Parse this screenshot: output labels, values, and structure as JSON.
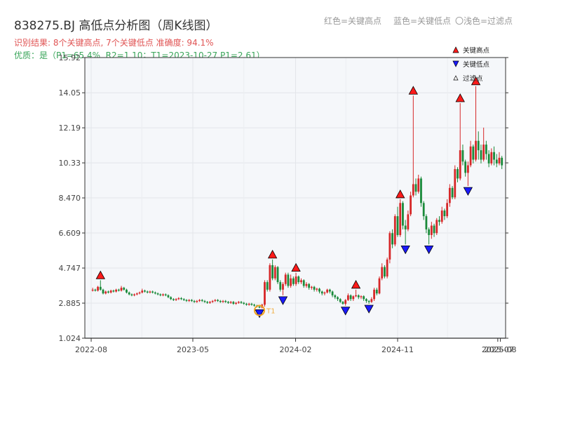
{
  "header": {
    "title": "838275.BJ 高低点分析图（周K线图）",
    "result_line": "识别结果: 8个关键高点, 7个关键低点  准确度: 94.1%",
    "quality_line": "优质：是（P1=65.4%, R2=1.10；T1=2023-10-27 P1=2.61）",
    "top_legend": [
      "红色=关键高点",
      "蓝色=关键低点",
      "〇浅色=过滤点"
    ]
  },
  "colors": {
    "up": "#d62728",
    "down": "#1a8a3a",
    "high_marker": "#ff1a1a",
    "low_marker": "#1a1aff",
    "filter_ring": "#f0a020",
    "plot_bg": "#f5f7fa"
  },
  "chart_data": {
    "type": "candlestick",
    "yticks": [
      "1.024",
      "2.885",
      "4.747",
      "6.609",
      "8.470",
      "10.33",
      "12.19",
      "14.05",
      "15.92"
    ],
    "ylim": [
      1.024,
      15.92
    ],
    "xticks": [
      "2022-08",
      "2023-05",
      "2024-02",
      "2024-11",
      "2025-07",
      "2025-08"
    ],
    "legend": [
      "关键高点",
      "关键低点",
      "过滤点"
    ],
    "annotation": {
      "text": "T1",
      "x": "2023-10-27",
      "y": 2.61
    },
    "key_highs": [
      {
        "x": "2022-08-26",
        "y": 4.1
      },
      {
        "x": "2023-12-01",
        "y": 5.2
      },
      {
        "x": "2024-02-02",
        "y": 4.5
      },
      {
        "x": "2024-07-12",
        "y": 3.6
      },
      {
        "x": "2024-11-08",
        "y": 8.4
      },
      {
        "x": "2024-12-13",
        "y": 13.9
      },
      {
        "x": "2025-04-18",
        "y": 13.5
      },
      {
        "x": "2025-05-30",
        "y": 14.4
      }
    ],
    "key_lows": [
      {
        "x": "2023-10-27",
        "y": 2.61
      },
      {
        "x": "2023-12-29",
        "y": 3.3
      },
      {
        "x": "2024-06-14",
        "y": 2.75
      },
      {
        "x": "2024-08-16",
        "y": 2.85
      },
      {
        "x": "2024-11-22",
        "y": 6.0
      },
      {
        "x": "2025-01-24",
        "y": 6.0
      },
      {
        "x": "2025-05-09",
        "y": 9.1
      }
    ],
    "filter_points": [
      {
        "x": "2023-10-27",
        "y": 2.61
      }
    ],
    "candles": [
      [
        "2022-08-05",
        3.55,
        3.6,
        3.7,
        3.5
      ],
      [
        "2022-08-12",
        3.6,
        3.55,
        3.65,
        3.5
      ],
      [
        "2022-08-19",
        3.55,
        3.75,
        3.8,
        3.5
      ],
      [
        "2022-08-26",
        3.75,
        3.6,
        4.1,
        3.55
      ],
      [
        "2022-09-02",
        3.6,
        3.4,
        3.65,
        3.35
      ],
      [
        "2022-09-09",
        3.4,
        3.5,
        3.55,
        3.35
      ],
      [
        "2022-09-16",
        3.5,
        3.45,
        3.55,
        3.4
      ],
      [
        "2022-09-23",
        3.45,
        3.55,
        3.6,
        3.4
      ],
      [
        "2022-09-30",
        3.55,
        3.5,
        3.6,
        3.45
      ],
      [
        "2022-10-07",
        3.5,
        3.6,
        3.65,
        3.45
      ],
      [
        "2022-10-14",
        3.6,
        3.55,
        3.65,
        3.5
      ],
      [
        "2022-10-21",
        3.55,
        3.7,
        3.8,
        3.5
      ],
      [
        "2022-10-28",
        3.7,
        3.6,
        3.75,
        3.55
      ],
      [
        "2022-11-04",
        3.6,
        3.45,
        3.65,
        3.4
      ],
      [
        "2022-11-11",
        3.45,
        3.35,
        3.5,
        3.3
      ],
      [
        "2022-11-18",
        3.35,
        3.3,
        3.4,
        3.25
      ],
      [
        "2022-11-25",
        3.3,
        3.35,
        3.4,
        3.25
      ],
      [
        "2022-12-02",
        3.35,
        3.4,
        3.45,
        3.3
      ],
      [
        "2022-12-09",
        3.4,
        3.45,
        3.5,
        3.35
      ],
      [
        "2022-12-16",
        3.45,
        3.55,
        3.65,
        3.4
      ],
      [
        "2022-12-23",
        3.55,
        3.5,
        3.6,
        3.45
      ],
      [
        "2022-12-30",
        3.5,
        3.45,
        3.55,
        3.4
      ],
      [
        "2023-01-06",
        3.45,
        3.5,
        3.55,
        3.4
      ],
      [
        "2023-01-13",
        3.5,
        3.45,
        3.55,
        3.4
      ],
      [
        "2023-01-20",
        3.45,
        3.4,
        3.5,
        3.35
      ],
      [
        "2023-01-27",
        3.4,
        3.35,
        3.45,
        3.3
      ],
      [
        "2023-02-03",
        3.35,
        3.3,
        3.4,
        3.25
      ],
      [
        "2023-02-10",
        3.3,
        3.35,
        3.4,
        3.25
      ],
      [
        "2023-02-17",
        3.35,
        3.3,
        3.4,
        3.25
      ],
      [
        "2023-02-24",
        3.3,
        3.2,
        3.35,
        3.15
      ],
      [
        "2023-03-03",
        3.2,
        3.1,
        3.25,
        3.05
      ],
      [
        "2023-03-10",
        3.1,
        3.05,
        3.15,
        3.0
      ],
      [
        "2023-03-17",
        3.05,
        3.1,
        3.15,
        3.0
      ],
      [
        "2023-03-24",
        3.1,
        3.15,
        3.2,
        3.05
      ],
      [
        "2023-03-31",
        3.15,
        3.1,
        3.2,
        3.05
      ],
      [
        "2023-04-07",
        3.1,
        3.05,
        3.15,
        3.0
      ],
      [
        "2023-04-14",
        3.05,
        3.0,
        3.1,
        2.95
      ],
      [
        "2023-04-21",
        3.0,
        3.05,
        3.1,
        2.95
      ],
      [
        "2023-04-28",
        3.05,
        3.0,
        3.1,
        2.95
      ],
      [
        "2023-05-05",
        3.0,
        2.95,
        3.05,
        2.9
      ],
      [
        "2023-05-12",
        2.95,
        3.0,
        3.05,
        2.9
      ],
      [
        "2023-05-19",
        3.0,
        3.05,
        3.1,
        2.95
      ],
      [
        "2023-05-26",
        3.05,
        3.0,
        3.1,
        2.95
      ],
      [
        "2023-06-02",
        3.0,
        2.95,
        3.05,
        2.9
      ],
      [
        "2023-06-09",
        2.95,
        2.9,
        3.0,
        2.85
      ],
      [
        "2023-06-16",
        2.9,
        2.95,
        3.0,
        2.85
      ],
      [
        "2023-06-23",
        2.95,
        3.0,
        3.05,
        2.9
      ],
      [
        "2023-06-30",
        3.0,
        3.05,
        3.1,
        2.95
      ],
      [
        "2023-07-07",
        3.05,
        3.0,
        3.1,
        2.95
      ],
      [
        "2023-07-14",
        3.0,
        2.95,
        3.05,
        2.9
      ],
      [
        "2023-07-21",
        2.95,
        3.0,
        3.05,
        2.9
      ],
      [
        "2023-07-28",
        3.0,
        2.95,
        3.05,
        2.9
      ],
      [
        "2023-08-04",
        2.95,
        2.9,
        3.0,
        2.85
      ],
      [
        "2023-08-11",
        2.9,
        2.95,
        3.0,
        2.85
      ],
      [
        "2023-08-18",
        2.95,
        2.85,
        3.0,
        2.8
      ],
      [
        "2023-08-25",
        2.85,
        2.9,
        2.95,
        2.8
      ],
      [
        "2023-09-01",
        2.9,
        2.95,
        3.0,
        2.85
      ],
      [
        "2023-09-08",
        2.95,
        2.9,
        3.0,
        2.85
      ],
      [
        "2023-09-15",
        2.9,
        2.85,
        2.95,
        2.8
      ],
      [
        "2023-09-22",
        2.85,
        2.8,
        2.9,
        2.75
      ],
      [
        "2023-09-29",
        2.8,
        2.85,
        2.9,
        2.75
      ],
      [
        "2023-10-06",
        2.85,
        2.8,
        2.9,
        2.75
      ],
      [
        "2023-10-13",
        2.8,
        2.75,
        2.85,
        2.7
      ],
      [
        "2023-10-20",
        2.75,
        2.7,
        2.8,
        2.65
      ],
      [
        "2023-10-27",
        2.7,
        2.65,
        2.75,
        2.61
      ],
      [
        "2023-11-03",
        2.65,
        2.8,
        2.85,
        2.6
      ],
      [
        "2023-11-10",
        2.8,
        4.0,
        4.1,
        2.7
      ],
      [
        "2023-11-17",
        4.0,
        3.6,
        4.1,
        3.5
      ],
      [
        "2023-11-24",
        3.6,
        4.9,
        5.0,
        3.5
      ],
      [
        "2023-12-01",
        4.9,
        4.2,
        5.2,
        4.1
      ],
      [
        "2023-12-08",
        4.2,
        4.8,
        4.9,
        4.1
      ],
      [
        "2023-12-15",
        4.8,
        4.0,
        4.85,
        3.9
      ],
      [
        "2023-12-22",
        4.0,
        3.6,
        4.1,
        3.5
      ],
      [
        "2023-12-29",
        3.6,
        3.9,
        4.0,
        3.3
      ],
      [
        "2024-01-05",
        3.9,
        4.4,
        4.5,
        3.8
      ],
      [
        "2024-01-12",
        4.4,
        3.8,
        4.5,
        3.7
      ],
      [
        "2024-01-19",
        3.8,
        4.2,
        4.4,
        3.7
      ],
      [
        "2024-01-26",
        4.2,
        3.9,
        4.3,
        3.8
      ],
      [
        "2024-02-02",
        3.9,
        4.3,
        4.5,
        3.8
      ],
      [
        "2024-02-09",
        4.3,
        4.0,
        4.35,
        3.9
      ],
      [
        "2024-02-16",
        4.0,
        4.1,
        4.2,
        3.9
      ],
      [
        "2024-02-23",
        4.1,
        3.8,
        4.15,
        3.7
      ],
      [
        "2024-03-01",
        3.8,
        3.9,
        4.0,
        3.7
      ],
      [
        "2024-03-08",
        3.9,
        3.7,
        3.95,
        3.6
      ],
      [
        "2024-03-15",
        3.7,
        3.75,
        3.8,
        3.6
      ],
      [
        "2024-03-22",
        3.75,
        3.6,
        3.8,
        3.5
      ],
      [
        "2024-03-29",
        3.6,
        3.65,
        3.7,
        3.5
      ],
      [
        "2024-04-05",
        3.65,
        3.5,
        3.7,
        3.4
      ],
      [
        "2024-04-12",
        3.5,
        3.4,
        3.55,
        3.3
      ],
      [
        "2024-04-19",
        3.4,
        3.45,
        3.5,
        3.3
      ],
      [
        "2024-04-26",
        3.45,
        3.6,
        3.65,
        3.4
      ],
      [
        "2024-05-03",
        3.6,
        3.5,
        3.65,
        3.4
      ],
      [
        "2024-05-10",
        3.5,
        3.3,
        3.55,
        3.2
      ],
      [
        "2024-05-17",
        3.3,
        3.2,
        3.35,
        3.1
      ],
      [
        "2024-05-24",
        3.2,
        3.1,
        3.25,
        3.0
      ],
      [
        "2024-05-31",
        3.1,
        2.95,
        3.15,
        2.9
      ],
      [
        "2024-06-07",
        2.95,
        2.85,
        3.0,
        2.8
      ],
      [
        "2024-06-14",
        2.85,
        3.05,
        3.1,
        2.75
      ],
      [
        "2024-06-21",
        3.05,
        3.3,
        3.4,
        3.0
      ],
      [
        "2024-06-28",
        3.3,
        3.1,
        3.35,
        3.0
      ],
      [
        "2024-07-05",
        3.1,
        3.25,
        3.3,
        3.0
      ],
      [
        "2024-07-12",
        3.25,
        3.3,
        3.6,
        3.2
      ],
      [
        "2024-07-19",
        3.3,
        3.2,
        3.35,
        3.1
      ],
      [
        "2024-07-26",
        3.2,
        3.25,
        3.3,
        3.1
      ],
      [
        "2024-08-02",
        3.25,
        3.1,
        3.3,
        3.0
      ],
      [
        "2024-08-09",
        3.1,
        3.0,
        3.15,
        2.9
      ],
      [
        "2024-08-16",
        3.0,
        2.95,
        3.05,
        2.85
      ],
      [
        "2024-08-23",
        2.95,
        3.1,
        3.2,
        2.9
      ],
      [
        "2024-08-30",
        3.1,
        3.6,
        3.7,
        3.0
      ],
      [
        "2024-09-06",
        3.6,
        3.4,
        3.7,
        3.3
      ],
      [
        "2024-09-13",
        3.4,
        4.2,
        4.3,
        3.35
      ],
      [
        "2024-09-20",
        4.2,
        4.8,
        5.0,
        4.1
      ],
      [
        "2024-09-27",
        4.8,
        4.3,
        4.9,
        4.2
      ],
      [
        "2024-10-04",
        4.3,
        5.2,
        5.3,
        4.2
      ],
      [
        "2024-10-11",
        5.2,
        6.6,
        6.7,
        5.0
      ],
      [
        "2024-10-18",
        6.6,
        6.0,
        6.8,
        5.8
      ],
      [
        "2024-10-25",
        6.0,
        7.5,
        7.6,
        5.9
      ],
      [
        "2024-11-01",
        7.5,
        6.5,
        8.0,
        6.4
      ],
      [
        "2024-11-08",
        6.5,
        8.2,
        8.4,
        6.4
      ],
      [
        "2024-11-15",
        8.2,
        7.0,
        8.3,
        6.8
      ],
      [
        "2024-11-22",
        7.0,
        6.8,
        7.3,
        6.0
      ],
      [
        "2024-11-29",
        6.8,
        7.6,
        7.8,
        6.7
      ],
      [
        "2024-12-06",
        7.6,
        8.6,
        8.8,
        7.5
      ],
      [
        "2024-12-13",
        8.6,
        9.2,
        13.9,
        8.5
      ],
      [
        "2024-12-20",
        9.2,
        8.8,
        9.5,
        8.6
      ],
      [
        "2024-12-27",
        8.8,
        9.5,
        9.7,
        8.7
      ],
      [
        "2025-01-03",
        9.5,
        8.2,
        9.6,
        8.0
      ],
      [
        "2025-01-10",
        8.2,
        7.5,
        8.3,
        7.3
      ],
      [
        "2025-01-17",
        7.5,
        6.8,
        7.6,
        6.6
      ],
      [
        "2025-01-24",
        6.8,
        6.5,
        6.9,
        6.0
      ],
      [
        "2025-01-31",
        6.5,
        7.0,
        7.2,
        6.3
      ],
      [
        "2025-02-07",
        7.0,
        6.6,
        7.1,
        6.4
      ],
      [
        "2025-02-14",
        6.6,
        7.3,
        7.4,
        6.5
      ],
      [
        "2025-02-21",
        7.3,
        7.2,
        7.5,
        7.0
      ],
      [
        "2025-02-28",
        7.2,
        7.8,
        8.0,
        7.1
      ],
      [
        "2025-03-07",
        7.8,
        7.5,
        7.9,
        7.3
      ],
      [
        "2025-03-14",
        7.5,
        8.2,
        8.4,
        7.4
      ],
      [
        "2025-03-21",
        8.2,
        9.0,
        9.2,
        8.0
      ],
      [
        "2025-03-28",
        9.0,
        8.5,
        9.1,
        8.4
      ],
      [
        "2025-04-04",
        8.5,
        10.0,
        10.2,
        8.4
      ],
      [
        "2025-04-11",
        10.0,
        9.5,
        10.1,
        9.3
      ],
      [
        "2025-04-18",
        9.5,
        11.0,
        13.5,
        9.4
      ],
      [
        "2025-04-25",
        11.0,
        10.4,
        11.3,
        10.2
      ],
      [
        "2025-05-02",
        10.4,
        9.8,
        10.5,
        9.6
      ],
      [
        "2025-05-09",
        9.8,
        10.2,
        10.4,
        9.1
      ],
      [
        "2025-05-16",
        10.2,
        11.2,
        11.5,
        10.1
      ],
      [
        "2025-05-23",
        11.2,
        10.5,
        11.3,
        10.3
      ],
      [
        "2025-05-30",
        10.5,
        11.5,
        14.4,
        10.4
      ],
      [
        "2025-06-06",
        11.5,
        11.0,
        12.0,
        10.5
      ],
      [
        "2025-06-13",
        11.0,
        10.5,
        11.3,
        10.3
      ],
      [
        "2025-06-20",
        10.5,
        11.3,
        12.2,
        10.4
      ],
      [
        "2025-06-27",
        11.3,
        10.8,
        11.5,
        10.5
      ],
      [
        "2025-07-04",
        10.8,
        10.3,
        11.0,
        10.1
      ],
      [
        "2025-07-11",
        10.3,
        10.9,
        11.1,
        10.2
      ],
      [
        "2025-07-18",
        10.9,
        10.5,
        11.2,
        10.2
      ],
      [
        "2025-07-25",
        10.5,
        10.3,
        10.8,
        10.1
      ],
      [
        "2025-08-01",
        10.3,
        10.6,
        10.9,
        10.2
      ],
      [
        "2025-08-08",
        10.6,
        10.2,
        10.7,
        10.0
      ]
    ]
  }
}
